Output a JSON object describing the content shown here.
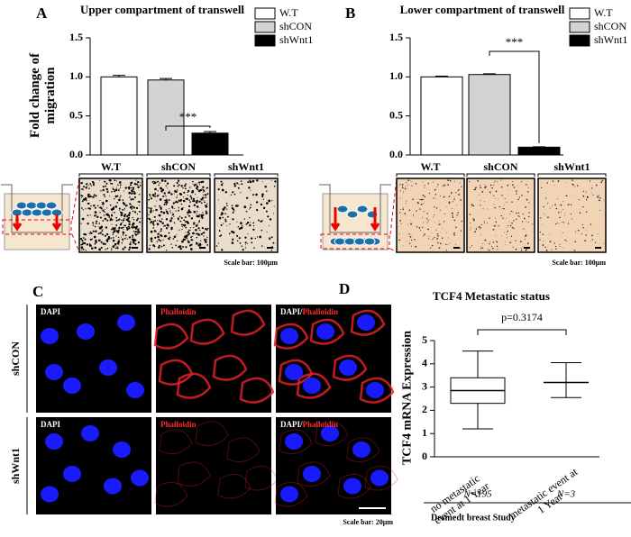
{
  "chart_data": [
    {
      "type": "bar",
      "title": "Upper compartment of transwell",
      "y_label": "Fold change of migration",
      "ylim": [
        0,
        1.5
      ],
      "yticks": [
        {
          "value": 0,
          "label": "0.0"
        },
        0.5,
        {
          "value": 1,
          "label": "1.0"
        },
        1.5
      ],
      "series": [
        {
          "name": "W.T",
          "color": "#ffffff",
          "values": [
            1.0
          ],
          "errors": [
            0.02
          ]
        },
        {
          "name": "shCON",
          "color": "#d3d3d3",
          "values": [
            0.96
          ],
          "errors": [
            0.02
          ]
        },
        {
          "name": "shWnt1",
          "color": "#000000",
          "values": [
            0.28
          ],
          "errors": [
            0.02
          ]
        }
      ],
      "annotations": [
        "***"
      ],
      "scale_bar": "Scale bar: 100μm"
    },
    {
      "type": "bar",
      "title": "Lower compartment of transwell",
      "ylim": [
        0,
        1.5
      ],
      "yticks": [
        {
          "value": 0,
          "label": "0.0"
        },
        0.5,
        {
          "value": 1,
          "label": "1.0"
        },
        1.5
      ],
      "series": [
        {
          "name": "W.T",
          "color": "#ffffff",
          "values": [
            1.0
          ],
          "errors": [
            0.01
          ]
        },
        {
          "name": "shCON",
          "color": "#d3d3d3",
          "values": [
            1.03
          ],
          "errors": [
            0.01
          ]
        },
        {
          "name": "shWnt1",
          "color": "#000000",
          "values": [
            0.1
          ],
          "errors": [
            0.005
          ]
        }
      ],
      "annotations": [
        "***"
      ],
      "scale_bar": "Scale bar: 100μm"
    },
    {
      "type": "box",
      "title": "TCF4 Metastatic status",
      "y_label": "TCF4 mRNA Expression",
      "ylim": [
        0,
        5
      ],
      "yticks": [
        0,
        1,
        2,
        3,
        4,
        5
      ],
      "categories": [
        "no metastatic event at 1 Year",
        "metastatic event at 1 Year"
      ],
      "min": [
        1.2,
        2.55
      ],
      "q1": [
        2.3,
        null
      ],
      "median": [
        2.85,
        3.2
      ],
      "q3": [
        3.4,
        null
      ],
      "max": [
        4.55,
        4.05
      ],
      "n_labels": [
        "N=195",
        "N=3"
      ],
      "annotations": [
        "p=0.3174"
      ],
      "footer": "Desmedt breast Study"
    }
  ],
  "figure": {
    "panel_labels": [
      "A",
      "B",
      "C",
      "D"
    ],
    "C": {
      "channels": [
        "DAPI",
        "Phalloidin"
      ],
      "separator": "/",
      "conditions": [
        "shCON",
        "shWnt1"
      ],
      "scale_bar": "Scale bar: 20μm"
    }
  }
}
